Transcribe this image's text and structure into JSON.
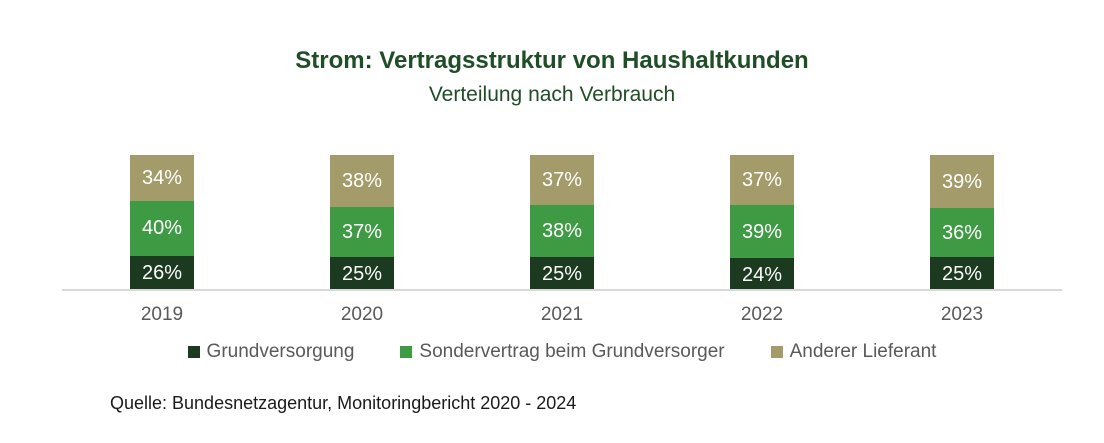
{
  "page": {
    "title": "Strom: Vertragsstruktur von Haushaltkunden",
    "subtitle": "Verteilung nach Verbrauch",
    "source": "Quelle: Bundesnetzagentur, Monitoringbericht 2020 - 2024"
  },
  "colors": {
    "title": "#1f4e26",
    "axis_label": "#595959",
    "legend_text": "#595959",
    "source_text": "#1a1a1a",
    "baseline": "#d9d9d9",
    "bar_label": "#ffffff"
  },
  "chart_data": {
    "type": "bar",
    "stacked": true,
    "orientation": "vertical",
    "title": "Strom: Vertragsstruktur von Haushaltkunden",
    "subtitle": "Verteilung nach Verbrauch",
    "categories": [
      "2019",
      "2020",
      "2021",
      "2022",
      "2023"
    ],
    "series": [
      {
        "name": "Grundversorgung",
        "color": "#1c3a20",
        "values": [
          26,
          25,
          25,
          24,
          25
        ]
      },
      {
        "name": "Sondervertrag beim Grundversorger",
        "color": "#3e9b43",
        "values": [
          40,
          37,
          38,
          39,
          36
        ]
      },
      {
        "name": "Anderer Lieferant",
        "color": "#a39b69",
        "values": [
          34,
          38,
          37,
          37,
          39
        ]
      }
    ],
    "value_suffix": "%",
    "ylim": [
      0,
      100
    ],
    "data_labels": true,
    "legend_position": "bottom",
    "grid": false,
    "xlabel": "",
    "ylabel": ""
  }
}
